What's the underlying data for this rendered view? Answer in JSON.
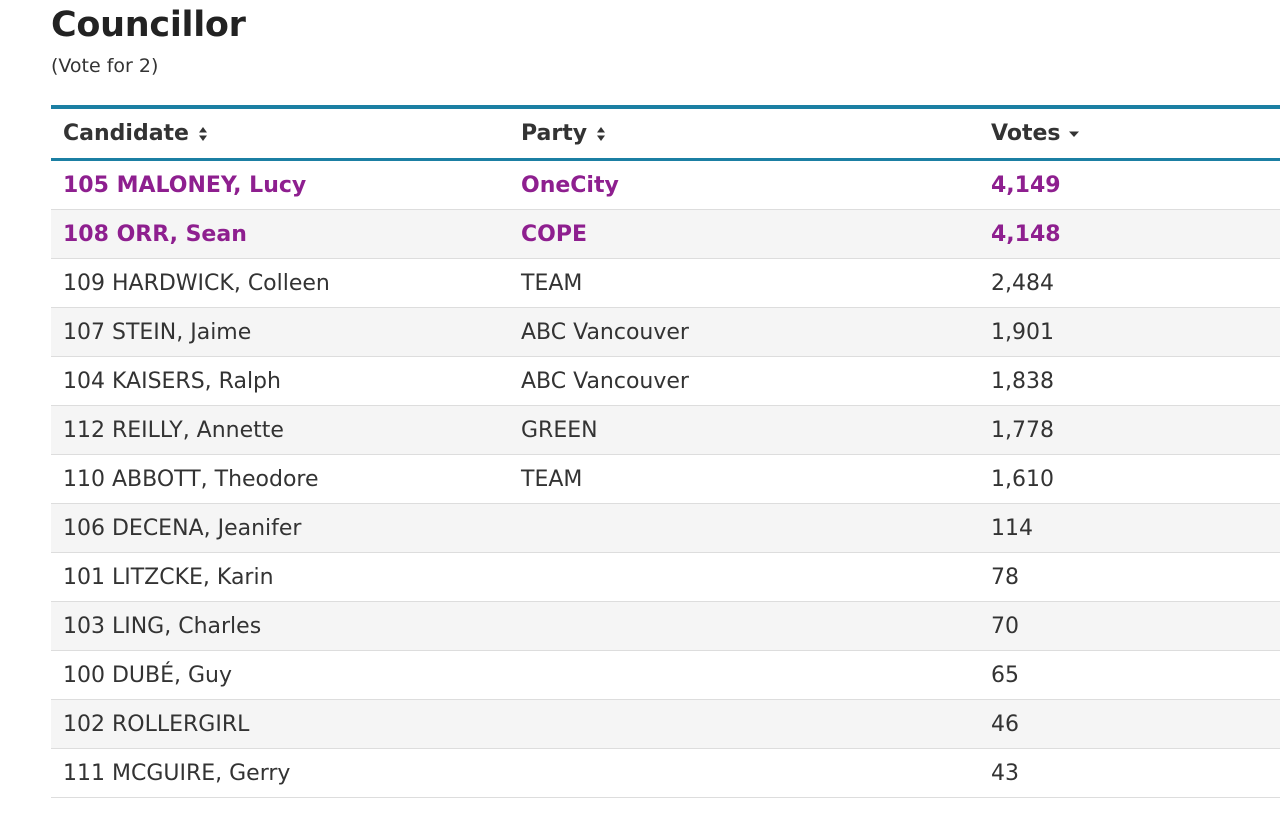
{
  "contest": {
    "title": "Councillor",
    "subtitle": "(Vote for 2)"
  },
  "table": {
    "headers": {
      "candidate": "Candidate",
      "party": "Party",
      "votes": "Votes"
    },
    "sort_icons": {
      "candidate": "sort-both-icon",
      "party": "sort-both-icon",
      "votes": "sort-descending-icon"
    },
    "colors": {
      "accent_border": "#1b7fa3",
      "elected_text": "#8e1f8f",
      "row_alt_background": "#f5f5f5"
    },
    "rows": [
      {
        "candidate": "105 MALONEY, Lucy",
        "party": "OneCity",
        "votes": "4,149",
        "elected": true
      },
      {
        "candidate": "108 ORR, Sean",
        "party": "COPE",
        "votes": "4,148",
        "elected": true
      },
      {
        "candidate": "109 HARDWICK, Colleen",
        "party": "TEAM",
        "votes": "2,484",
        "elected": false
      },
      {
        "candidate": "107 STEIN, Jaime",
        "party": "ABC Vancouver",
        "votes": "1,901",
        "elected": false
      },
      {
        "candidate": "104 KAISERS, Ralph",
        "party": "ABC Vancouver",
        "votes": "1,838",
        "elected": false
      },
      {
        "candidate": "112 REILLY, Annette",
        "party": "GREEN",
        "votes": "1,778",
        "elected": false
      },
      {
        "candidate": "110 ABBOTT, Theodore",
        "party": "TEAM",
        "votes": "1,610",
        "elected": false
      },
      {
        "candidate": "106 DECENA, Jeanifer",
        "party": "",
        "votes": "114",
        "elected": false
      },
      {
        "candidate": "101 LITZCKE, Karin",
        "party": "",
        "votes": "78",
        "elected": false
      },
      {
        "candidate": "103 LING, Charles",
        "party": "",
        "votes": "70",
        "elected": false
      },
      {
        "candidate": "100 DUBÉ, Guy",
        "party": "",
        "votes": "65",
        "elected": false
      },
      {
        "candidate": "102 ROLLERGIRL",
        "party": "",
        "votes": "46",
        "elected": false
      },
      {
        "candidate": "111 MCGUIRE, Gerry",
        "party": "",
        "votes": "43",
        "elected": false
      }
    ]
  }
}
